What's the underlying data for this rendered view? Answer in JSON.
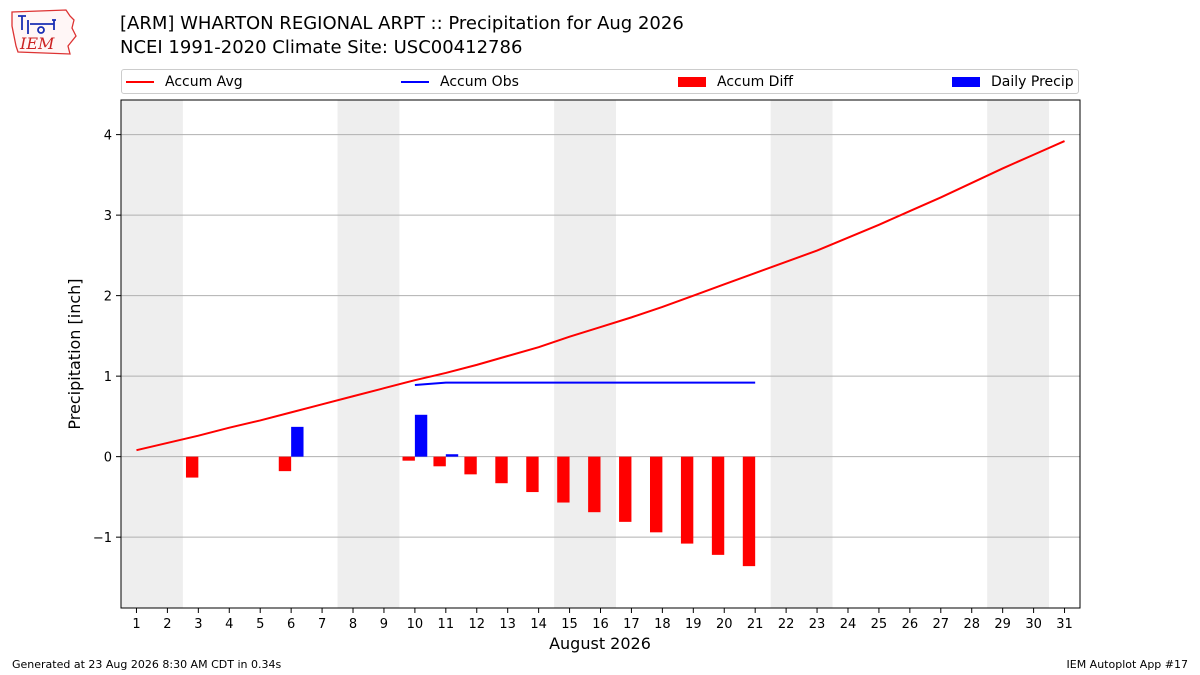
{
  "header": {
    "title_line1": "[ARM] WHARTON REGIONAL ARPT :: Precipitation for Aug 2026",
    "title_line2": "NCEI 1991-2020 Climate Site: USC00412786",
    "logo_text": "IEM"
  },
  "footer": {
    "generated": "Generated at 23 Aug 2026 8:30 AM CDT in 0.34s",
    "app": "IEM Autoplot App #17"
  },
  "chart_data": {
    "type": "bar",
    "xlabel": "August 2026",
    "ylabel": "Precipitation [inch]",
    "xlim": [
      0.5,
      31.5
    ],
    "ylim": [
      -1.88,
      4.43
    ],
    "x_ticks": [
      1,
      2,
      3,
      4,
      5,
      6,
      7,
      8,
      9,
      10,
      11,
      12,
      13,
      14,
      15,
      16,
      17,
      18,
      19,
      20,
      21,
      22,
      23,
      24,
      25,
      26,
      27,
      28,
      29,
      30,
      31
    ],
    "y_ticks": [
      -1,
      0,
      1,
      2,
      3,
      4
    ],
    "y_tick_labels": [
      "−1",
      "0",
      "1",
      "2",
      "3",
      "4"
    ],
    "grid": "horizontal",
    "weekend_shading": [
      [
        0.5,
        2.5
      ],
      [
        7.5,
        9.5
      ],
      [
        14.5,
        16.5
      ],
      [
        21.5,
        23.5
      ],
      [
        28.5,
        30.5
      ]
    ],
    "legend": {
      "placement": "top",
      "entries": [
        {
          "label": "Accum Avg",
          "kind": "line",
          "color": "#ff0000"
        },
        {
          "label": "Accum Obs",
          "kind": "line",
          "color": "#0000ff"
        },
        {
          "label": "Accum Diff",
          "kind": "bar",
          "color": "#ff0000"
        },
        {
          "label": "Daily Precip",
          "kind": "bar",
          "color": "#0000ff"
        }
      ]
    },
    "series": [
      {
        "name": "Accum Avg",
        "kind": "line",
        "color": "#ff0000",
        "x": [
          1,
          2,
          3,
          4,
          5,
          6,
          7,
          8,
          9,
          10,
          11,
          12,
          13,
          14,
          15,
          16,
          17,
          18,
          19,
          20,
          21,
          22,
          23,
          24,
          25,
          26,
          27,
          28,
          29,
          30,
          31
        ],
        "values": [
          0.08,
          0.17,
          0.26,
          0.36,
          0.45,
          0.55,
          0.65,
          0.75,
          0.85,
          0.95,
          1.04,
          1.14,
          1.25,
          1.36,
          1.49,
          1.61,
          1.73,
          1.86,
          2.0,
          2.14,
          2.28,
          2.42,
          2.56,
          2.72,
          2.88,
          3.05,
          3.22,
          3.4,
          3.58,
          3.75,
          3.92
        ]
      },
      {
        "name": "Accum Obs",
        "kind": "line",
        "color": "#0000ff",
        "x": [
          10,
          11,
          12,
          13,
          14,
          15,
          16,
          17,
          18,
          19,
          20,
          21
        ],
        "values": [
          0.89,
          0.92,
          0.92,
          0.92,
          0.92,
          0.92,
          0.92,
          0.92,
          0.92,
          0.92,
          0.92,
          0.92
        ]
      },
      {
        "name": "Accum Diff",
        "kind": "bar",
        "color": "#ff0000",
        "x": [
          3,
          6,
          10,
          11,
          12,
          13,
          14,
          15,
          16,
          17,
          18,
          19,
          20,
          21
        ],
        "values": [
          -0.26,
          -0.18,
          -0.05,
          -0.12,
          -0.22,
          -0.33,
          -0.44,
          -0.57,
          -0.69,
          -0.81,
          -0.94,
          -1.08,
          -1.22,
          -1.36
        ]
      },
      {
        "name": "Daily Precip",
        "kind": "bar",
        "color": "#0000ff",
        "x": [
          6,
          10,
          11
        ],
        "values": [
          0.37,
          0.52,
          0.03
        ]
      }
    ]
  }
}
